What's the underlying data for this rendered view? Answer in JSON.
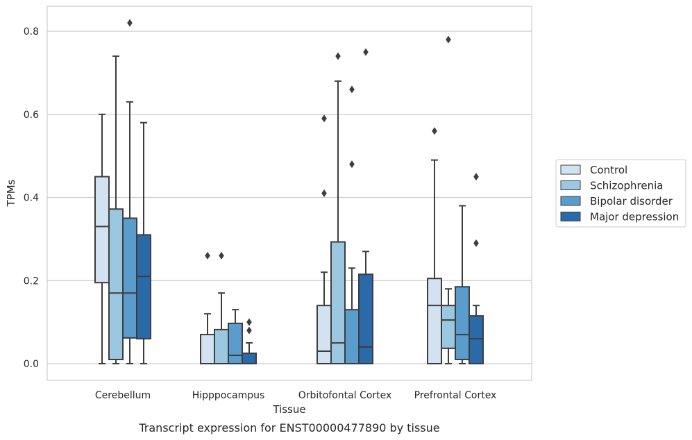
{
  "caption": "Transcript expression for ENST00000477890 by tissue",
  "chart_data": {
    "type": "box",
    "xlabel": "Tissue",
    "ylabel": "TPMs",
    "ylim": [
      -0.04,
      0.86
    ],
    "yticks": [
      "0.0",
      "0.2",
      "0.4",
      "0.6",
      "0.8"
    ],
    "ytick_values": [
      0.0,
      0.2,
      0.4,
      0.6,
      0.8
    ],
    "grid": true,
    "legend_placement": "right",
    "categories": [
      "Cerebellum",
      "Hipppocampus",
      "Orbitofontal Cortex",
      "Prefrontal Cortex"
    ],
    "series": [
      {
        "name": "Control",
        "color": "#d2e2f1",
        "boxes": [
          {
            "whislo": 0.0,
            "q1": 0.195,
            "med": 0.33,
            "q3": 0.45,
            "whishi": 0.6,
            "fliers": []
          },
          {
            "whislo": 0.0,
            "q1": 0.0,
            "med": 0.0,
            "q3": 0.07,
            "whishi": 0.12,
            "fliers": [
              0.26
            ]
          },
          {
            "whislo": 0.0,
            "q1": 0.0,
            "med": 0.03,
            "q3": 0.14,
            "whishi": 0.22,
            "fliers": [
              0.41,
              0.59
            ]
          },
          {
            "whislo": 0.0,
            "q1": 0.0,
            "med": 0.14,
            "q3": 0.205,
            "whishi": 0.49,
            "fliers": [
              0.56
            ]
          }
        ]
      },
      {
        "name": "Schizophrenia",
        "color": "#9bc7e0",
        "boxes": [
          {
            "whislo": 0.0,
            "q1": 0.01,
            "med": 0.17,
            "q3": 0.372,
            "whishi": 0.74,
            "fliers": []
          },
          {
            "whislo": 0.0,
            "q1": 0.0,
            "med": 0.0,
            "q3": 0.082,
            "whishi": 0.17,
            "fliers": [
              0.26
            ]
          },
          {
            "whislo": 0.0,
            "q1": 0.0,
            "med": 0.05,
            "q3": 0.293,
            "whishi": 0.68,
            "fliers": [
              0.74
            ]
          },
          {
            "whislo": 0.0,
            "q1": 0.037,
            "med": 0.105,
            "q3": 0.14,
            "whishi": 0.18,
            "fliers": [
              0.78
            ]
          }
        ]
      },
      {
        "name": "Bipolar disorder",
        "color": "#5a9ccb",
        "boxes": [
          {
            "whislo": 0.0,
            "q1": 0.062,
            "med": 0.17,
            "q3": 0.35,
            "whishi": 0.63,
            "fliers": [
              0.82
            ]
          },
          {
            "whislo": 0.0,
            "q1": 0.0,
            "med": 0.02,
            "q3": 0.097,
            "whishi": 0.13,
            "fliers": []
          },
          {
            "whislo": 0.0,
            "q1": 0.0,
            "med": 0.0,
            "q3": 0.13,
            "whishi": 0.23,
            "fliers": [
              0.48,
              0.66
            ]
          },
          {
            "whislo": 0.0,
            "q1": 0.01,
            "med": 0.07,
            "q3": 0.185,
            "whishi": 0.38,
            "fliers": []
          }
        ]
      },
      {
        "name": "Major depression",
        "color": "#2a6aa9",
        "boxes": [
          {
            "whislo": 0.0,
            "q1": 0.06,
            "med": 0.21,
            "q3": 0.31,
            "whishi": 0.58,
            "fliers": []
          },
          {
            "whislo": 0.0,
            "q1": 0.0,
            "med": 0.0,
            "q3": 0.025,
            "whishi": 0.05,
            "fliers": [
              0.08,
              0.1
            ]
          },
          {
            "whislo": 0.0,
            "q1": 0.0,
            "med": 0.04,
            "q3": 0.215,
            "whishi": 0.27,
            "fliers": [
              0.75
            ]
          },
          {
            "whislo": 0.0,
            "q1": 0.0,
            "med": 0.06,
            "q3": 0.115,
            "whishi": 0.14,
            "fliers": [
              0.29,
              0.45
            ]
          }
        ]
      }
    ]
  }
}
